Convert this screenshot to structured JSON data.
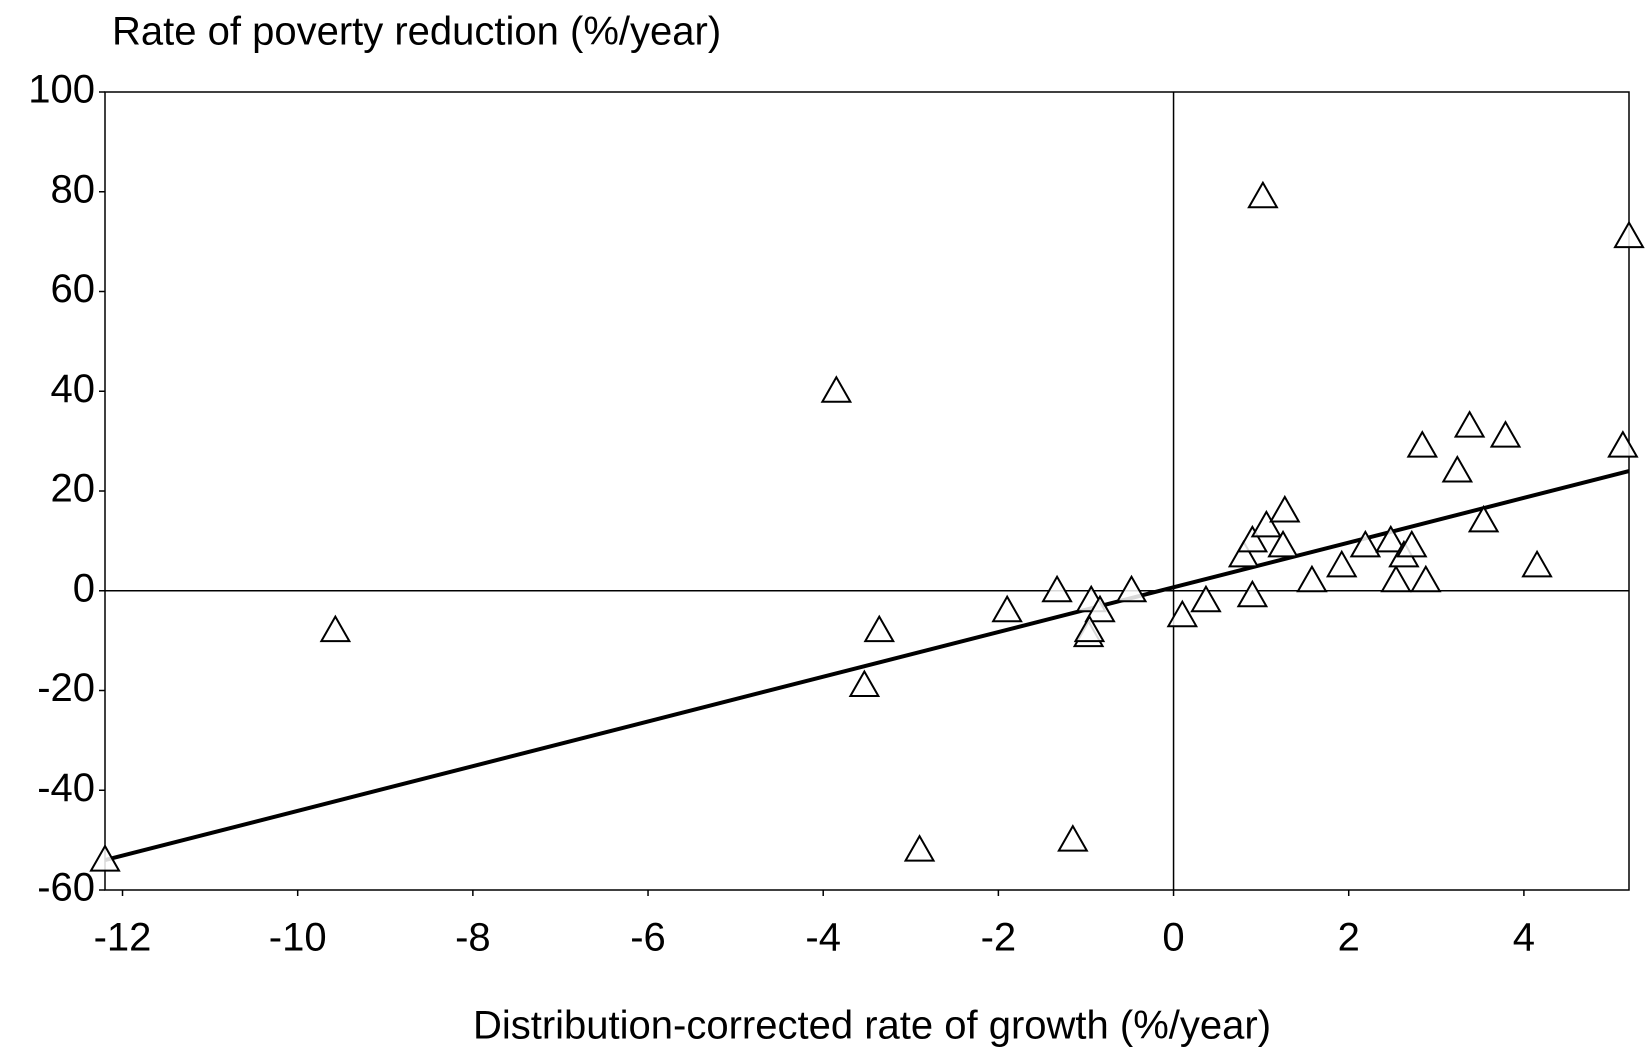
{
  "chart_data": {
    "type": "scatter",
    "title": "Rate of poverty reduction (%/year)",
    "x_label": "Distribution-corrected rate of growth (%/year)",
    "x": [
      -12.2,
      -9.57,
      -3.85,
      -3.36,
      -3.53,
      -2.9,
      -1.9,
      -1.33,
      -1.15,
      -0.94,
      -0.84,
      -0.97,
      -0.96,
      -0.48,
      0.1,
      0.37,
      0.9,
      0.8,
      0.9,
      1.06,
      1.02,
      1.27,
      1.25,
      1.58,
      1.92,
      2.19,
      2.48,
      2.54,
      2.63,
      2.72,
      2.84,
      2.88,
      3.24,
      3.38,
      3.54,
      3.79,
      4.15,
      5.13,
      5.2
    ],
    "y": [
      -54,
      -8,
      40,
      -8,
      -19,
      -52,
      -4,
      0,
      -50,
      -2,
      -4,
      -9,
      -8,
      0,
      -5,
      -2,
      -1,
      7,
      10,
      13,
      79,
      16,
      9,
      2,
      5,
      9,
      10,
      2,
      7,
      9,
      29,
      2,
      24,
      33,
      14,
      31,
      5,
      29,
      71
    ],
    "color": "#000000",
    "trend_line": {
      "x": [
        -12.2,
        5.2
      ],
      "y": [
        -54,
        24
      ]
    },
    "xlim": [
      -12.2,
      5.2
    ],
    "xticks": [
      -12,
      -10,
      -8,
      -6,
      -4,
      -2,
      0,
      2,
      4
    ],
    "ylim": [
      -60,
      100
    ],
    "yticks": [
      -60,
      -40,
      -20,
      0,
      20,
      40,
      60,
      80,
      100
    ]
  }
}
